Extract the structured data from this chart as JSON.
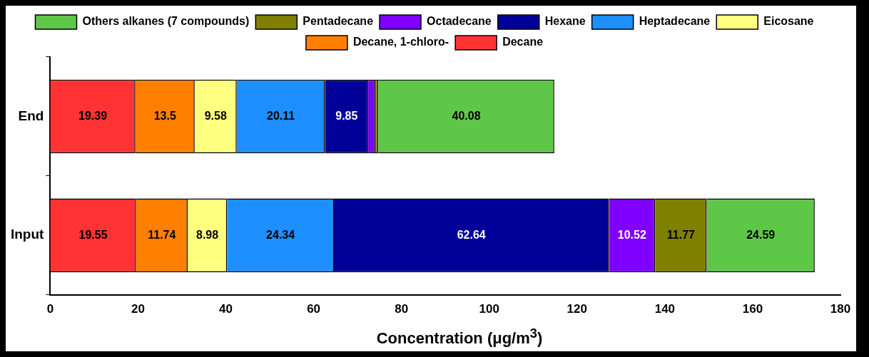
{
  "chart_data": {
    "type": "bar",
    "orientation": "horizontal",
    "stacked": true,
    "xlabel": "Concentration (μg/m$^{3}$)",
    "categories": [
      "End",
      "Input"
    ],
    "series": [
      {
        "name": "Decane",
        "color": "#ff3333",
        "values": [
          19.39,
          19.55
        ],
        "value_labels": [
          "19.39",
          "19.55"
        ]
      },
      {
        "name": "Decane, 1-chloro-",
        "color": "#ff8000",
        "values": [
          13.5,
          11.74
        ],
        "value_labels": [
          "13.5",
          "11.74"
        ]
      },
      {
        "name": "Eicosane",
        "color": "#ffff80",
        "values": [
          9.58,
          8.98
        ],
        "value_labels": [
          "9.58",
          "8.98"
        ]
      },
      {
        "name": "Heptadecane",
        "color": "#1e8fff",
        "values": [
          20.11,
          24.34
        ],
        "value_labels": [
          "20.11",
          "24.34"
        ]
      },
      {
        "name": "Hexane",
        "color": "#000099",
        "values": [
          9.85,
          62.64
        ],
        "value_labels": [
          "9.85",
          "62.64"
        ]
      },
      {
        "name": "Octadecane",
        "color": "#8000ff",
        "values": [
          1.6,
          10.52
        ],
        "value_labels": [
          null,
          "10.52"
        ]
      },
      {
        "name": "Pentadecane",
        "color": "#808000",
        "values": [
          0.7,
          11.77
        ],
        "value_labels": [
          null,
          "11.77"
        ]
      },
      {
        "name": "Others alkanes (7 compounds)",
        "color": "#5fc748",
        "values": [
          40.08,
          24.59
        ],
        "value_labels": [
          "40.08",
          "24.59"
        ]
      }
    ],
    "xlim": [
      0,
      180
    ],
    "xticks": [
      0,
      20,
      40,
      60,
      80,
      100,
      120,
      140,
      160,
      180
    ],
    "grid": false,
    "legend": "top"
  }
}
